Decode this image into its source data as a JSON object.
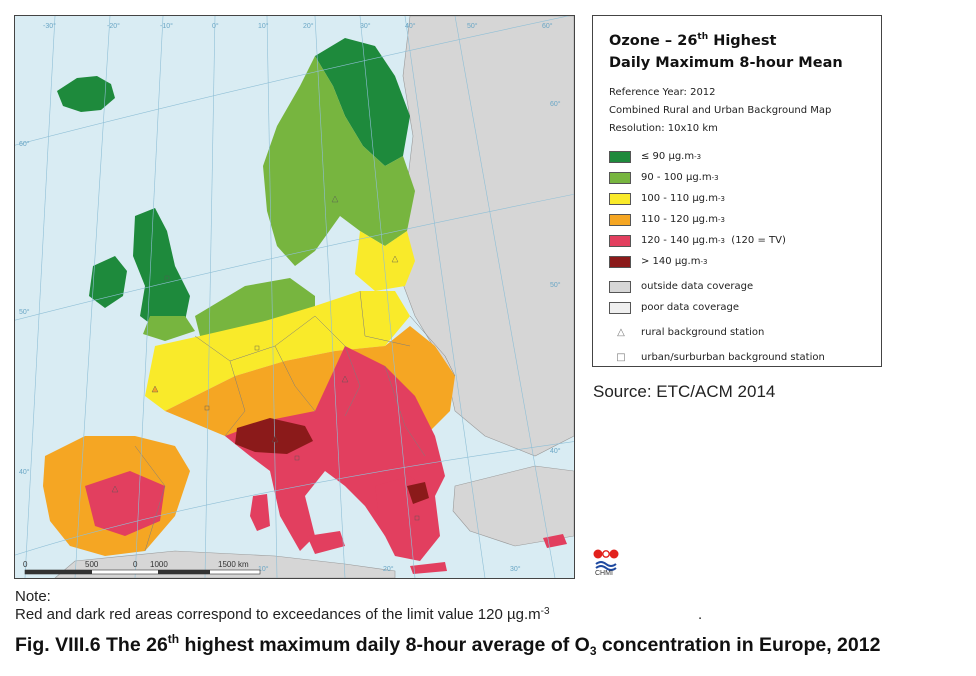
{
  "legend": {
    "title_prefix": "Ozone – 26",
    "title_sup": "th",
    "title_suffix": " Highest",
    "title_line2": "Daily Maximum 8-hour Mean",
    "reference_year": "Reference Year: 2012",
    "map_type": "Combined Rural and Urban Background Map",
    "resolution": "Resolution: 10x10 km",
    "classes": [
      {
        "label": "≤ 90 µg.m",
        "exp": "-3",
        "suffix": "",
        "color": "#1e8a3c"
      },
      {
        "label": "90 - 100 µg.m",
        "exp": "-3",
        "suffix": "",
        "color": "#77b53f"
      },
      {
        "label": "100 - 110 µg.m",
        "exp": "-3",
        "suffix": "",
        "color": "#f9ea2a"
      },
      {
        "label": "110 - 120 µg.m",
        "exp": "-3",
        "suffix": "",
        "color": "#f5a623"
      },
      {
        "label": "120 - 140 µg.m",
        "exp": "-3",
        "suffix": "  (120 = TV)",
        "color": "#e23f5f"
      },
      {
        "label": "> 140 µg.m",
        "exp": "-3",
        "suffix": "",
        "color": "#8b1a1a"
      }
    ],
    "coverage": [
      {
        "label": "outside data coverage",
        "color": "#d6d6d6"
      },
      {
        "label": "poor data coverage",
        "color": "#efefef"
      }
    ],
    "stations": [
      {
        "symbol": "△",
        "label": "rural background station"
      },
      {
        "symbol": "□",
        "label": "urban/surburban background station"
      }
    ]
  },
  "map": {
    "longitude_labels": [
      "-30°",
      "-20°",
      "-10°",
      "0°",
      "10°",
      "20°",
      "30°",
      "40°",
      "50°",
      "60°"
    ],
    "latitude_labels": [
      "60°",
      "50°",
      "40°"
    ],
    "right_lat_labels": [
      "60°",
      "50°",
      "40°"
    ],
    "bottom_lon_labels": [
      "10°",
      "20°",
      "30°"
    ],
    "scale_labels": [
      "0",
      "500",
      "0",
      "1000",
      "1500 km"
    ],
    "colors": {
      "sea": "#d9ecf3",
      "outside": "#d6d6d6",
      "c90": "#1e8a3c",
      "c100": "#77b53f",
      "c110": "#f9ea2a",
      "c120": "#f5a623",
      "c140": "#e23f5f",
      "cmax": "#8b1a1a"
    }
  },
  "source": "Source: ETC/ACM 2014",
  "logo_label": "CHMI",
  "note": {
    "label": "Note:",
    "text": "Red and dark red areas correspond to exceedances of the limit value 120 µg.m",
    "exp": "-3",
    "trailing": "."
  },
  "caption": {
    "prefix": "Fig. VIII.6  The 26",
    "sup": "th",
    "middle": " highest maximum daily 8-hour average of O",
    "sub": "3",
    "suffix": " concentration  in Europe, 2012"
  }
}
